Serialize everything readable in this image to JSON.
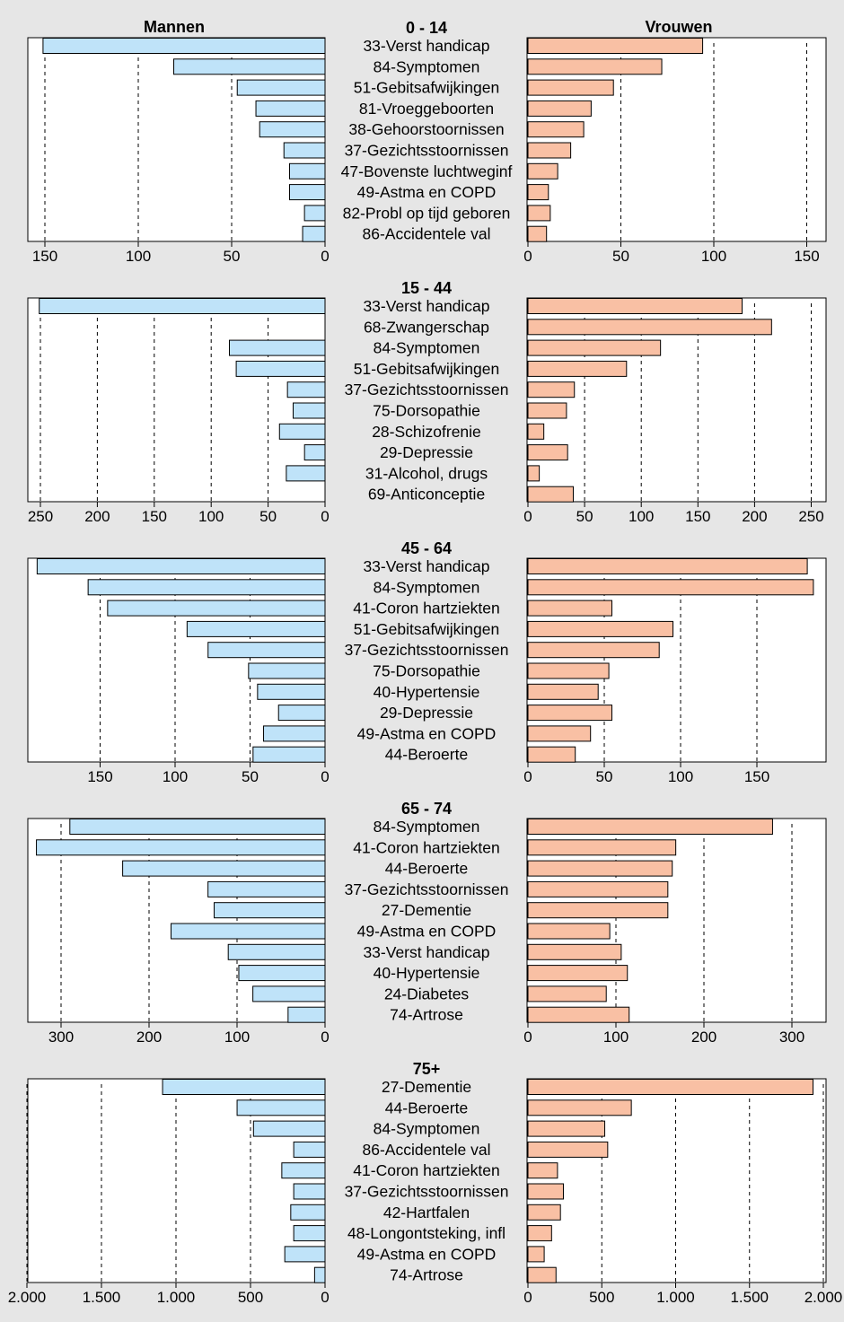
{
  "headers": {
    "left": "Mannen",
    "right": "Vrouwen"
  },
  "colors": {
    "men": "#bfe3f9",
    "women": "#f9c0a4",
    "background": "#e6e6e6"
  },
  "chart_data": [
    {
      "type": "bar",
      "title": "0 - 14",
      "categories": [
        "33-Verst handicap",
        "84-Symptomen",
        "51-Gebitsafwijkingen",
        "81-Vroeggeboorten",
        "38-Gehoorstoornissen",
        "37-Gezichtsstoornissen",
        "47-Bovenste luchtweginf",
        "49-Astma en COPD",
        "82-Probl op tijd geboren",
        "86-Accidentele val"
      ],
      "series": [
        {
          "name": "Mannen",
          "values": [
            151,
            81,
            47,
            37,
            35,
            22,
            19,
            19,
            11,
            12
          ]
        },
        {
          "name": "Vrouwen",
          "values": [
            94,
            72,
            46,
            34,
            30,
            23,
            16,
            11,
            12,
            10
          ]
        }
      ],
      "xlim_men": [
        0,
        160
      ],
      "xlim_women": [
        0,
        160
      ],
      "ticks_men": [
        150,
        100,
        50,
        0
      ],
      "ticks_women": [
        0,
        50,
        100,
        150
      ],
      "tick_labels_men": [
        "150",
        "100",
        "50",
        "0"
      ],
      "tick_labels_women": [
        "0",
        "50",
        "100",
        "150"
      ],
      "grid": true
    },
    {
      "type": "bar",
      "title": "15 - 44",
      "categories": [
        "33-Verst handicap",
        "68-Zwangerschap",
        "84-Symptomen",
        "51-Gebitsafwijkingen",
        "37-Gezichtsstoornissen",
        "75-Dorsopathie",
        "28-Schizofrenie",
        "29-Depressie",
        "31-Alcohol, drugs",
        "69-Anticonceptie"
      ],
      "series": [
        {
          "name": "Mannen",
          "values": [
            251,
            0,
            84,
            78,
            33,
            28,
            40,
            18,
            34,
            0
          ]
        },
        {
          "name": "Vrouwen",
          "values": [
            189,
            215,
            117,
            87,
            41,
            34,
            14,
            35,
            10,
            40
          ]
        }
      ],
      "xlim_men": [
        0,
        265
      ],
      "xlim_women": [
        0,
        265
      ],
      "ticks_men": [
        250,
        200,
        150,
        100,
        50,
        0
      ],
      "ticks_women": [
        0,
        50,
        100,
        150,
        200,
        250
      ],
      "tick_labels_men": [
        "250",
        "200",
        "150",
        "100",
        "50",
        "0"
      ],
      "tick_labels_women": [
        "0",
        "50",
        "100",
        "150",
        "200",
        "250"
      ],
      "grid": true
    },
    {
      "type": "bar",
      "title": "45 - 64",
      "categories": [
        "33-Verst handicap",
        "84-Symptomen",
        "41-Coron hartziekten",
        "51-Gebitsafwijkingen",
        "37-Gezichtsstoornissen",
        "75-Dorsopathie",
        "40-Hypertensie",
        "29-Depressie",
        "49-Astma en COPD",
        "44-Beroerte"
      ],
      "series": [
        {
          "name": "Mannen",
          "values": [
            192,
            158,
            145,
            92,
            78,
            51,
            45,
            31,
            41,
            48
          ]
        },
        {
          "name": "Vrouwen",
          "values": [
            183,
            187,
            55,
            95,
            86,
            53,
            46,
            55,
            41,
            31
          ]
        }
      ],
      "xlim_men": [
        0,
        198
      ],
      "xlim_women": [
        0,
        196
      ],
      "ticks_men": [
        150,
        100,
        50,
        0
      ],
      "ticks_women": [
        0,
        50,
        100,
        150
      ],
      "tick_labels_men": [
        "150",
        "100",
        "50",
        "0"
      ],
      "tick_labels_women": [
        "0",
        "50",
        "100",
        "150"
      ],
      "grid": true
    },
    {
      "type": "bar",
      "title": "65 - 74",
      "categories": [
        "84-Symptomen",
        "41-Coron hartziekten",
        "44-Beroerte",
        "37-Gezichtsstoornissen",
        "27-Dementie",
        "49-Astma en COPD",
        "33-Verst handicap",
        "40-Hypertensie",
        "24-Diabetes",
        "74-Artrose"
      ],
      "series": [
        {
          "name": "Mannen",
          "values": [
            290,
            328,
            230,
            133,
            126,
            175,
            110,
            98,
            82,
            42
          ]
        },
        {
          "name": "Vrouwen",
          "values": [
            278,
            168,
            164,
            159,
            159,
            93,
            106,
            113,
            89,
            115
          ]
        }
      ],
      "xlim_men": [
        0,
        340
      ],
      "xlim_women": [
        0,
        342
      ],
      "ticks_men": [
        300,
        200,
        100,
        0
      ],
      "ticks_women": [
        0,
        100,
        200,
        300
      ],
      "tick_labels_men": [
        "300",
        "200",
        "100",
        "0"
      ],
      "tick_labels_women": [
        "0",
        "100",
        "200",
        "300"
      ],
      "grid": true
    },
    {
      "type": "bar",
      "title": "75+",
      "categories": [
        "27-Dementie",
        "44-Beroerte",
        "84-Symptomen",
        "86-Accidentele val",
        "41-Coron hartziekten",
        "37-Gezichtsstoornissen",
        "42-Hartfalen",
        "48-Longontsteking, infl",
        "49-Astma en COPD",
        "74-Artrose"
      ],
      "series": [
        {
          "name": "Mannen",
          "values": [
            1090,
            590,
            480,
            210,
            290,
            210,
            230,
            210,
            270,
            70
          ]
        },
        {
          "name": "Vrouwen",
          "values": [
            1930,
            700,
            520,
            540,
            200,
            240,
            220,
            160,
            110,
            190
          ]
        }
      ],
      "xlim_men": [
        0,
        2000
      ],
      "xlim_women": [
        0,
        2000
      ],
      "ticks_men": [
        2000,
        1500,
        1000,
        500,
        0
      ],
      "ticks_women": [
        0,
        500,
        1000,
        1500,
        2000
      ],
      "tick_labels_men": [
        "2.000",
        "1.500",
        "1.000",
        "500",
        "0"
      ],
      "tick_labels_women": [
        "0",
        "500",
        "1.000",
        "1.500",
        "2.000"
      ],
      "grid": true
    }
  ]
}
